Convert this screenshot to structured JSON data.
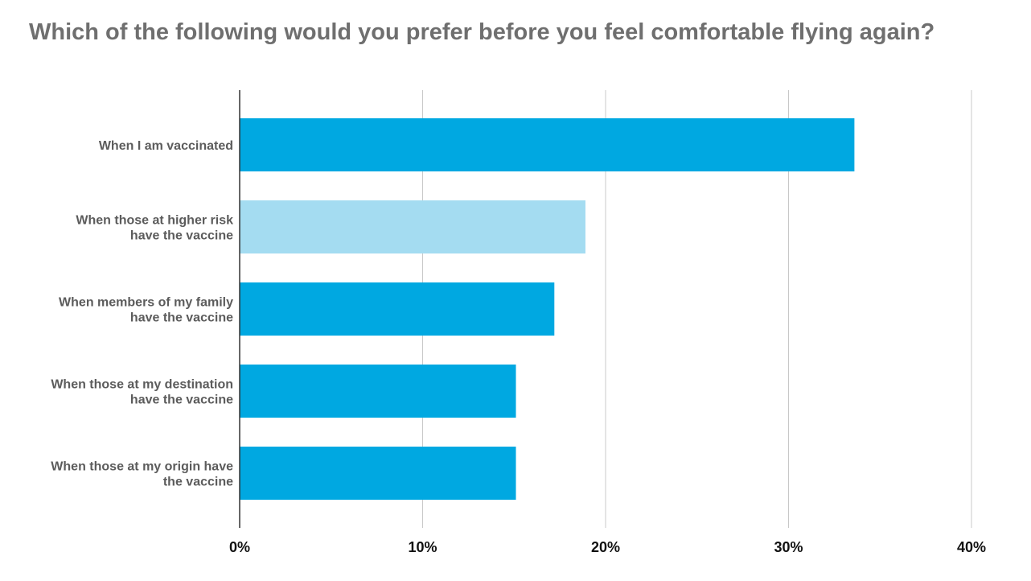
{
  "chart_data": {
    "type": "bar",
    "orientation": "horizontal",
    "title": "Which of the following would you prefer before you feel comfortable flying again?",
    "categories": [
      [
        "When I am vaccinated"
      ],
      [
        "When those at higher risk",
        "have the vaccine"
      ],
      [
        "When members of my family",
        "have the vaccine"
      ],
      [
        "When those at my destination",
        "have the vaccine"
      ],
      [
        "When those at my origin have",
        "the vaccine"
      ]
    ],
    "values": [
      33.6,
      18.9,
      17.2,
      15.1,
      15.1
    ],
    "highlight_index": 1,
    "xlim": [
      0,
      40
    ],
    "xticks": [
      0,
      10,
      20,
      30,
      40
    ],
    "tick_labels": [
      "0%",
      "10%",
      "20%",
      "30%",
      "40%"
    ],
    "grid": true,
    "xlabel": "",
    "ylabel": "",
    "colors": {
      "bar": "#00a8e1",
      "bar_highlight": "#a4dcf1",
      "grid": "#c8c8c8",
      "axis": "#333333",
      "title": "#6f6f6f",
      "category_text": "#5c5c5c",
      "tick_text": "#111111"
    }
  }
}
